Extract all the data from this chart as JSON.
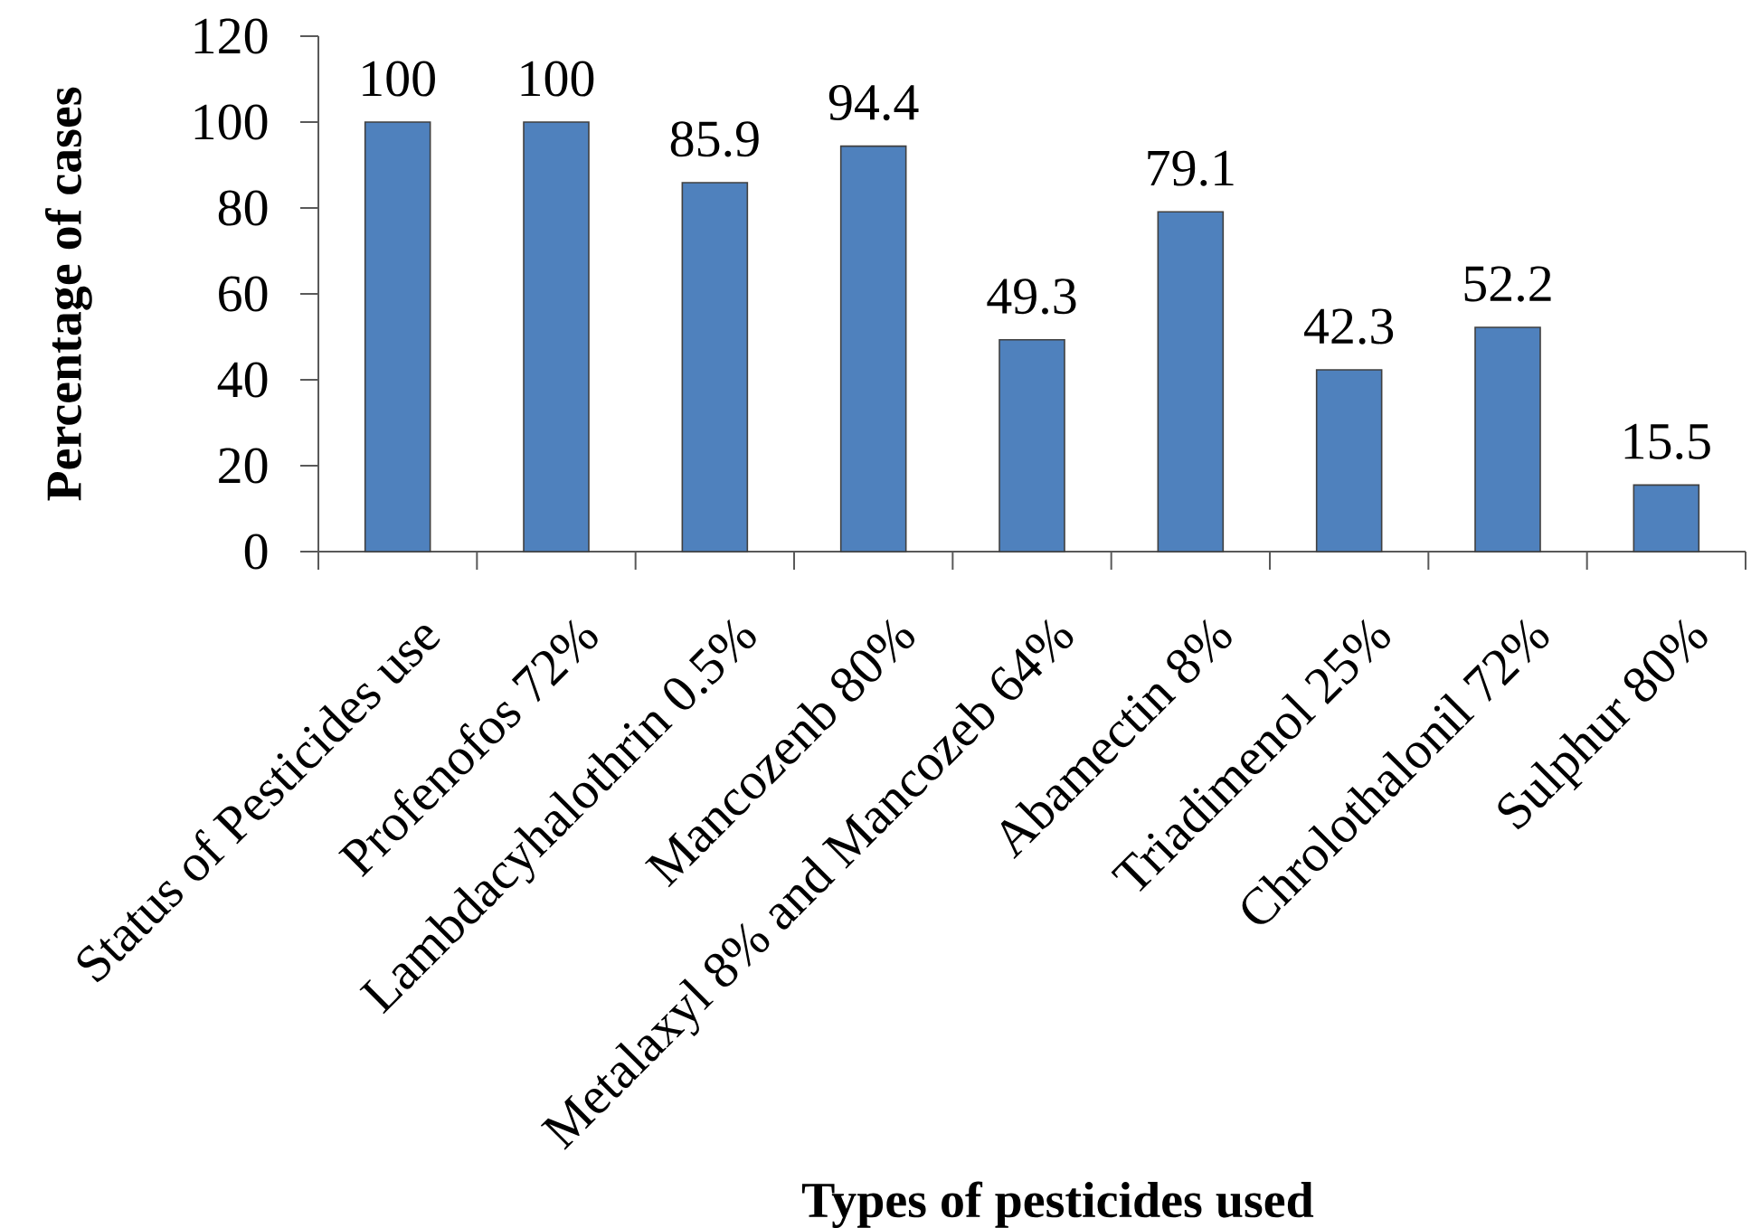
{
  "chart_data": {
    "type": "bar",
    "xlabel": "Types of pesticides used",
    "ylabel": "Percentage of cases",
    "categories": [
      "Status of Pesticides use",
      "Profenofos 72%",
      "Lambdacyhalothrin 0.5%",
      "Mancozenb 80%",
      "Metalaxyl 8% and Mancozeb 64%",
      "Abamectin 8%",
      "Triadimenol 25%",
      "Chrolothalonil 72%",
      "Sulphur 80%"
    ],
    "values": [
      100,
      100,
      85.9,
      94.4,
      49.3,
      79.1,
      42.3,
      52.2,
      15.5
    ],
    "color": "#4f81bd",
    "data_labels": true,
    "ylim": [
      0,
      120
    ],
    "yticks": [
      0,
      20,
      40,
      60,
      80,
      100,
      120
    ]
  }
}
